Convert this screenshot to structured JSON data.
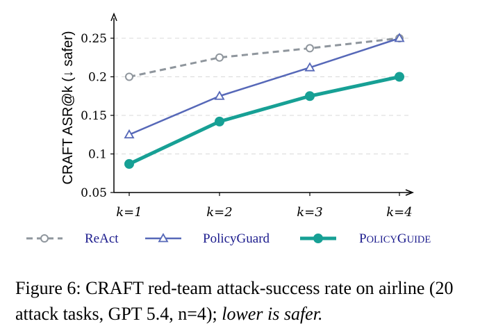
{
  "chart_data": {
    "type": "line",
    "categories": [
      "k=1",
      "k=2",
      "k=3",
      "k=4"
    ],
    "ylabel": "CRAFT ASR@k (↓ safer)",
    "ylim": [
      0.05,
      0.27
    ],
    "yticks": [
      "0.05",
      "0.1",
      "0.15",
      "0.2",
      "0.25"
    ],
    "grid": "horizontal dashed",
    "legend_position": "bottom",
    "series": [
      {
        "name": "ReAct",
        "values": [
          0.2,
          0.225,
          0.237,
          0.25
        ],
        "color": "#8f969d",
        "marker": "circle-open",
        "line": "dashed"
      },
      {
        "name": "PolicyGuard",
        "values": [
          0.125,
          0.175,
          0.212,
          0.25
        ],
        "color": "#5668b8",
        "marker": "triangle-open",
        "line": "solid"
      },
      {
        "name": "PolicyGuide",
        "values": [
          0.087,
          0.142,
          0.175,
          0.2
        ],
        "color": "#17a095",
        "marker": "circle-filled",
        "line": "solid-thick"
      }
    ]
  },
  "caption": {
    "main": "Figure 6: CRAFT red-team attack-success rate on airline (20 attack tasks, GPT 5.4, n=4);",
    "emphasis": "lower is safer."
  }
}
